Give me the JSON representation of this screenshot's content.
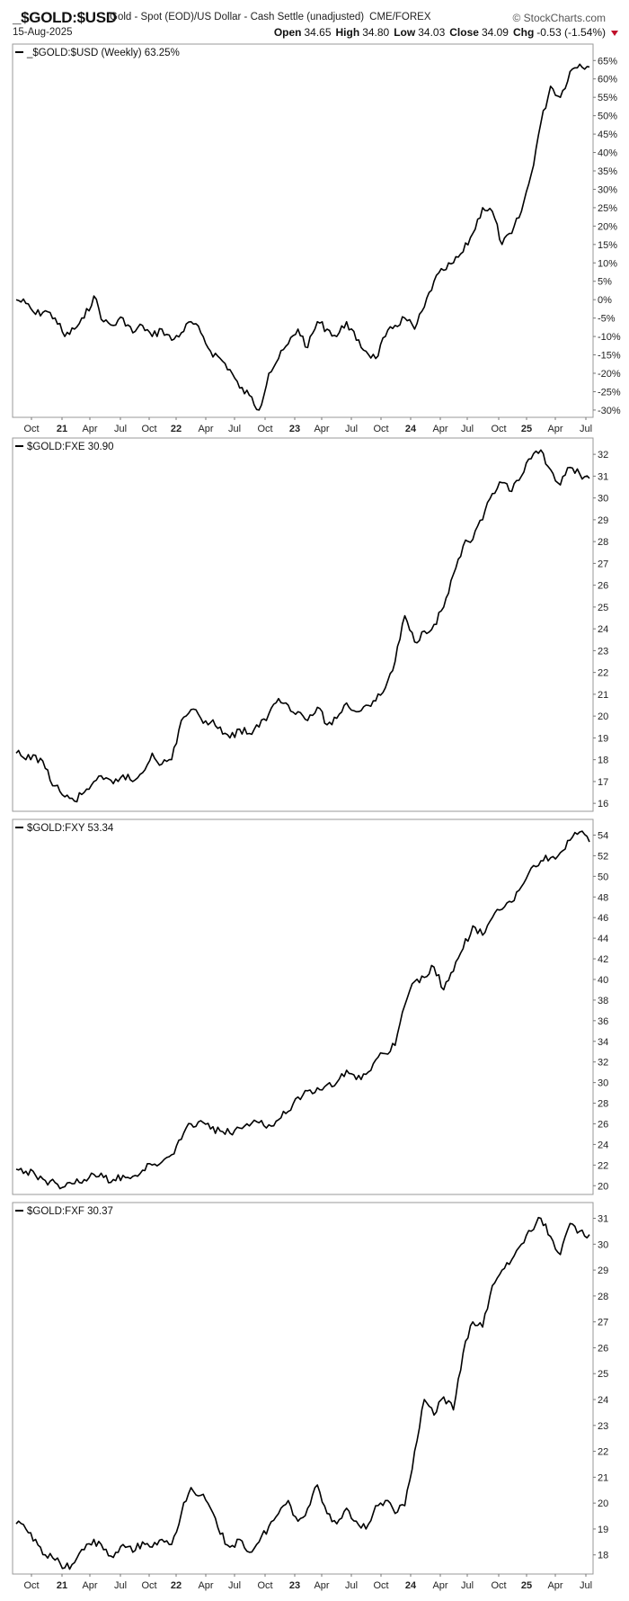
{
  "header": {
    "symbol": "_$GOLD:$USD",
    "description": "Gold - Spot (EOD)/US Dollar - Cash Settle (unadjusted)",
    "exchange": "CME/FOREX",
    "logo": "StockCharts.com",
    "date": "15-Aug-2025",
    "open_label": "Open",
    "open": "34.65",
    "high_label": "High",
    "high": "34.80",
    "low_label": "Low",
    "low": "34.03",
    "close_label": "Close",
    "close": "34.09",
    "chg_label": "Chg",
    "chg": "-0.53 (-1.54%)",
    "chg_marker_color": "#c0102a"
  },
  "x_ticks": [
    "Oct",
    "21",
    "Apr",
    "Jul",
    "Oct",
    "22",
    "Apr",
    "Jul",
    "Oct",
    "23",
    "Apr",
    "Jul",
    "Oct",
    "24",
    "Apr",
    "Jul",
    "Oct",
    "25",
    "Apr",
    "Jul"
  ],
  "chart_data": [
    {
      "type": "line",
      "title": "_$GOLD:$USD (Weekly) 63.25%",
      "series": [
        {
          "name": "_$GOLD:$USD",
          "x": [
            "2020-09",
            "2020-10",
            "2020-11",
            "2020-12",
            "2021-01",
            "2021-02",
            "2021-03",
            "2021-04",
            "2021-05",
            "2021-06",
            "2021-07",
            "2021-08",
            "2021-09",
            "2021-10",
            "2021-11",
            "2021-12",
            "2022-01",
            "2022-02",
            "2022-03",
            "2022-04",
            "2022-05",
            "2022-06",
            "2022-07",
            "2022-08",
            "2022-09",
            "2022-10",
            "2022-11",
            "2022-12",
            "2023-01",
            "2023-02",
            "2023-03",
            "2023-04",
            "2023-05",
            "2023-06",
            "2023-07",
            "2023-08",
            "2023-09",
            "2023-10",
            "2023-11",
            "2023-12",
            "2024-01",
            "2024-02",
            "2024-03",
            "2024-04",
            "2024-05",
            "2024-06",
            "2024-07",
            "2024-08",
            "2024-09",
            "2024-10",
            "2024-11",
            "2024-12",
            "2025-01",
            "2025-02",
            "2025-03",
            "2025-04",
            "2025-05",
            "2025-06",
            "2025-07",
            "2025-08"
          ],
          "values": [
            0,
            -1,
            -4,
            -3,
            -5,
            -10,
            -8,
            -5,
            1,
            -6,
            -7,
            -5,
            -9,
            -7,
            -10,
            -8,
            -11,
            -9,
            -6,
            -9,
            -14,
            -16,
            -19,
            -24,
            -26,
            -30,
            -20,
            -16,
            -12,
            -8,
            -13,
            -6,
            -8,
            -10,
            -6,
            -11,
            -14,
            -16,
            -10,
            -7,
            -5,
            -8,
            -2,
            5,
            8,
            10,
            13,
            18,
            25,
            24,
            15,
            18,
            24,
            34,
            48,
            58,
            55,
            62,
            64,
            63.25
          ]
        }
      ],
      "y_ticks": [
        65,
        60,
        55,
        50,
        45,
        40,
        35,
        30,
        25,
        20,
        15,
        10,
        5,
        0,
        -5,
        -10,
        -15,
        -20,
        -25,
        -30
      ],
      "y_tick_labels": [
        "65%",
        "60%",
        "55%",
        "50%",
        "45%",
        "40%",
        "35%",
        "30%",
        "25%",
        "20%",
        "15%",
        "10%",
        "5%",
        "0%",
        "-5%",
        "-10%",
        "-15%",
        "-20%",
        "-25%",
        "-30%"
      ],
      "ylim": [
        -31,
        68
      ],
      "grid": false
    },
    {
      "type": "line",
      "title": "$GOLD:FXE 30.90",
      "series": [
        {
          "name": "$GOLD:FXE",
          "x": [
            "2020-09",
            "2020-10",
            "2020-11",
            "2020-12",
            "2021-01",
            "2021-02",
            "2021-03",
            "2021-04",
            "2021-05",
            "2021-06",
            "2021-07",
            "2021-08",
            "2021-09",
            "2021-10",
            "2021-11",
            "2021-12",
            "2022-01",
            "2022-02",
            "2022-03",
            "2022-04",
            "2022-05",
            "2022-06",
            "2022-07",
            "2022-08",
            "2022-09",
            "2022-10",
            "2022-11",
            "2022-12",
            "2023-01",
            "2023-02",
            "2023-03",
            "2023-04",
            "2023-05",
            "2023-06",
            "2023-07",
            "2023-08",
            "2023-09",
            "2023-10",
            "2023-11",
            "2023-12",
            "2024-01",
            "2024-02",
            "2024-03",
            "2024-04",
            "2024-05",
            "2024-06",
            "2024-07",
            "2024-08",
            "2024-09",
            "2024-10",
            "2024-11",
            "2024-12",
            "2025-01",
            "2025-02",
            "2025-03",
            "2025-04",
            "2025-05",
            "2025-06",
            "2025-07",
            "2025-08"
          ],
          "values": [
            18.3,
            18.0,
            18.2,
            17.6,
            16.8,
            16.3,
            16.1,
            16.5,
            17.0,
            17.1,
            16.9,
            17.3,
            17.0,
            17.4,
            18.3,
            17.8,
            18.0,
            19.8,
            20.3,
            19.9,
            19.7,
            19.5,
            19.0,
            19.4,
            19.2,
            19.5,
            20.1,
            20.8,
            20.5,
            20.2,
            19.8,
            20.4,
            19.6,
            19.9,
            20.6,
            20.2,
            20.5,
            20.7,
            21.3,
            22.5,
            24.6,
            23.4,
            23.9,
            24.2,
            25.0,
            26.5,
            27.8,
            28.1,
            29.0,
            30.2,
            30.7,
            30.3,
            31.0,
            31.8,
            32.2,
            31.3,
            30.6,
            31.4,
            31.1,
            30.9
          ]
        }
      ],
      "y_ticks": [
        32,
        31,
        30,
        29,
        28,
        27,
        26,
        25,
        24,
        23,
        22,
        21,
        20,
        19,
        18,
        17,
        16
      ],
      "ylim": [
        15.8,
        32.5
      ],
      "grid": false
    },
    {
      "type": "line",
      "title": "$GOLD:FXY 53.34",
      "series": [
        {
          "name": "$GOLD:FXY",
          "x": [
            "2020-09",
            "2020-10",
            "2020-11",
            "2020-12",
            "2021-01",
            "2021-02",
            "2021-03",
            "2021-04",
            "2021-05",
            "2021-06",
            "2021-07",
            "2021-08",
            "2021-09",
            "2021-10",
            "2021-11",
            "2021-12",
            "2022-01",
            "2022-02",
            "2022-03",
            "2022-04",
            "2022-05",
            "2022-06",
            "2022-07",
            "2022-08",
            "2022-09",
            "2022-10",
            "2022-11",
            "2022-12",
            "2023-01",
            "2023-02",
            "2023-03",
            "2023-04",
            "2023-05",
            "2023-06",
            "2023-07",
            "2023-08",
            "2023-09",
            "2023-10",
            "2023-11",
            "2023-12",
            "2024-01",
            "2024-02",
            "2024-03",
            "2024-04",
            "2024-05",
            "2024-06",
            "2024-07",
            "2024-08",
            "2024-09",
            "2024-10",
            "2024-11",
            "2024-12",
            "2025-01",
            "2025-02",
            "2025-03",
            "2025-04",
            "2025-05",
            "2025-06",
            "2025-07",
            "2025-08"
          ],
          "values": [
            21.6,
            21.4,
            21.0,
            20.5,
            20.3,
            19.9,
            20.2,
            20.6,
            21.1,
            20.8,
            20.6,
            21.0,
            20.9,
            21.5,
            22.0,
            22.3,
            23.0,
            24.5,
            26.0,
            26.3,
            25.5,
            25.3,
            25.1,
            25.6,
            25.8,
            26.1,
            25.9,
            26.4,
            27.2,
            28.6,
            29.2,
            29.5,
            29.8,
            30.0,
            31.2,
            30.3,
            30.8,
            32.2,
            32.8,
            33.6,
            37.5,
            39.8,
            40.2,
            41.2,
            39.0,
            40.8,
            43.0,
            45.2,
            44.3,
            46.0,
            46.8,
            47.5,
            49.0,
            50.8,
            51.5,
            51.8,
            52.3,
            53.5,
            54.3,
            53.34
          ]
        }
      ],
      "y_ticks": [
        54,
        52,
        50,
        48,
        46,
        44,
        42,
        40,
        38,
        36,
        34,
        32,
        30,
        28,
        26,
        24,
        22,
        20
      ],
      "ylim": [
        19.5,
        55
      ],
      "grid": false
    },
    {
      "type": "line",
      "title": "$GOLD:FXF 30.37",
      "series": [
        {
          "name": "$GOLD:FXF",
          "x": [
            "2020-09",
            "2020-10",
            "2020-11",
            "2020-12",
            "2021-01",
            "2021-02",
            "2021-03",
            "2021-04",
            "2021-05",
            "2021-06",
            "2021-07",
            "2021-08",
            "2021-09",
            "2021-10",
            "2021-11",
            "2021-12",
            "2022-01",
            "2022-02",
            "2022-03",
            "2022-04",
            "2022-05",
            "2022-06",
            "2022-07",
            "2022-08",
            "2022-09",
            "2022-10",
            "2022-11",
            "2022-12",
            "2023-01",
            "2023-02",
            "2023-03",
            "2023-04",
            "2023-05",
            "2023-06",
            "2023-07",
            "2023-08",
            "2023-09",
            "2023-10",
            "2023-11",
            "2023-12",
            "2024-01",
            "2024-02",
            "2024-03",
            "2024-04",
            "2024-05",
            "2024-06",
            "2024-07",
            "2024-08",
            "2024-09",
            "2024-10",
            "2024-11",
            "2024-12",
            "2025-01",
            "2025-02",
            "2025-03",
            "2025-04",
            "2025-05",
            "2025-06",
            "2025-07",
            "2025-08"
          ],
          "values": [
            19.2,
            19.0,
            18.6,
            18.0,
            17.8,
            17.5,
            17.7,
            18.2,
            18.6,
            18.2,
            17.9,
            18.4,
            18.1,
            18.5,
            18.3,
            18.6,
            18.4,
            19.6,
            20.6,
            20.3,
            19.8,
            18.8,
            18.3,
            18.6,
            18.1,
            18.5,
            19.1,
            19.6,
            20.1,
            19.3,
            19.8,
            20.7,
            19.6,
            19.2,
            19.8,
            19.3,
            19.0,
            19.9,
            20.1,
            19.6,
            19.9,
            22.0,
            24.0,
            23.4,
            24.1,
            23.6,
            25.8,
            27.0,
            26.8,
            28.4,
            29.0,
            29.4,
            30.0,
            30.5,
            31.0,
            30.3,
            29.6,
            30.8,
            30.5,
            30.37
          ]
        }
      ],
      "y_ticks": [
        31,
        30,
        29,
        28,
        27,
        26,
        25,
        24,
        23,
        22,
        21,
        20,
        19,
        18
      ],
      "ylim": [
        17.4,
        31.4
      ],
      "grid": false
    }
  ]
}
